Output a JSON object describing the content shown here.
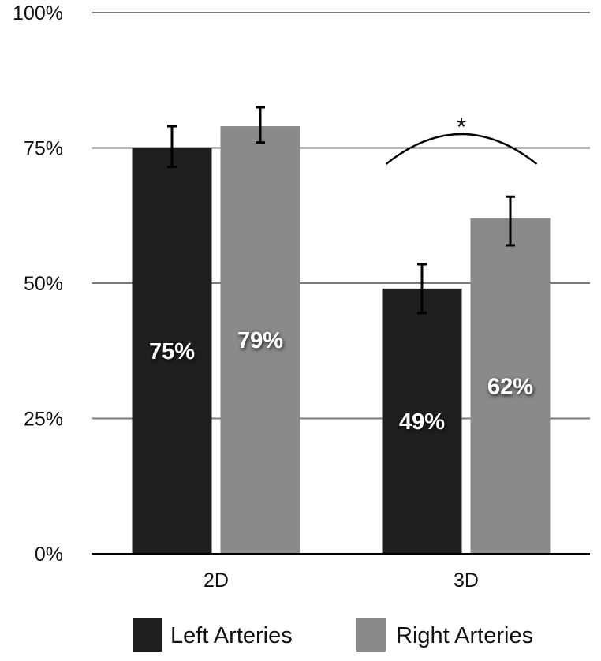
{
  "chart_data": {
    "type": "bar",
    "title": "",
    "xlabel": "",
    "ylabel": "",
    "ylim": [
      0,
      100
    ],
    "yticks": [
      {
        "value": 0,
        "label": "0%"
      },
      {
        "value": 25,
        "label": "25%"
      },
      {
        "value": 50,
        "label": "50%"
      },
      {
        "value": 75,
        "label": "75%"
      },
      {
        "value": 100,
        "label": "100%"
      }
    ],
    "grid": true,
    "legend_position": "bottom",
    "categories": [
      "2D",
      "3D"
    ],
    "series": [
      {
        "name": "Left Arteries",
        "color": "#1e1e1e",
        "values": [
          75,
          49
        ],
        "labels": [
          "75%",
          "49%"
        ],
        "error_low": [
          71.5,
          44.5
        ],
        "error_high": [
          79,
          53.5
        ]
      },
      {
        "name": "Right Arteries",
        "color": "#8a8a8a",
        "values": [
          79,
          62
        ],
        "labels": [
          "79%",
          "62%"
        ],
        "error_low": [
          76,
          57
        ],
        "error_high": [
          82.5,
          66
        ]
      }
    ],
    "annotations": [
      {
        "type": "significance",
        "category": "3D",
        "text": "*"
      }
    ]
  }
}
